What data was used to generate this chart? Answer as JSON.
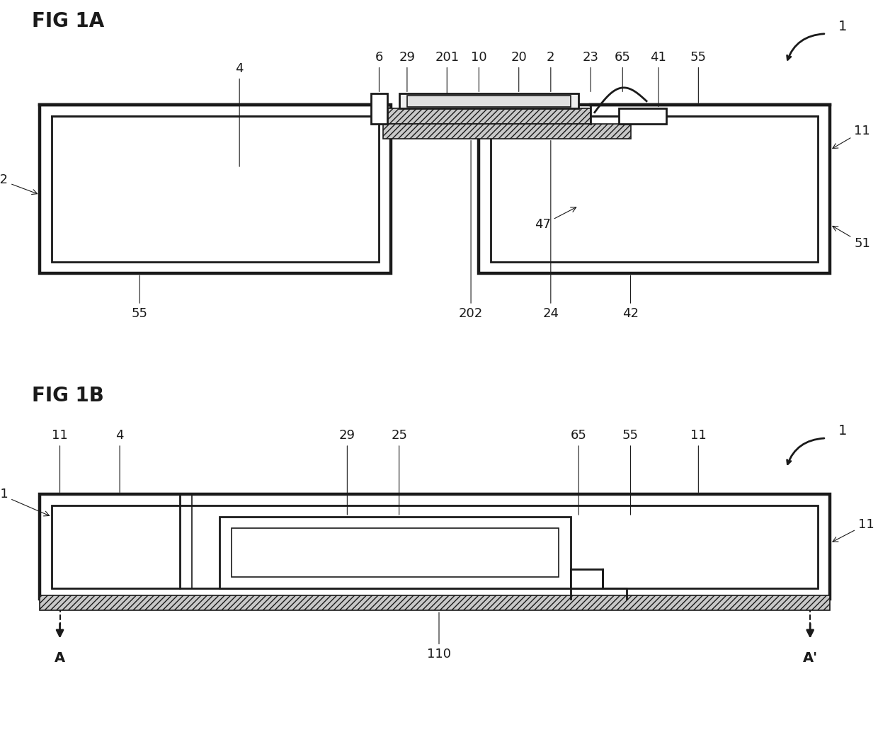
{
  "background_color": "#ffffff",
  "fig_width": 12.4,
  "fig_height": 10.58,
  "line_color": "#1a1a1a",
  "lw_thin": 1.2,
  "lw_med": 2.0,
  "lw_thick": 3.2,
  "fig1a_label": "FIG 1A",
  "fig1b_label": "FIG 1B",
  "label_fontsize": 20,
  "annot_fontsize": 13
}
